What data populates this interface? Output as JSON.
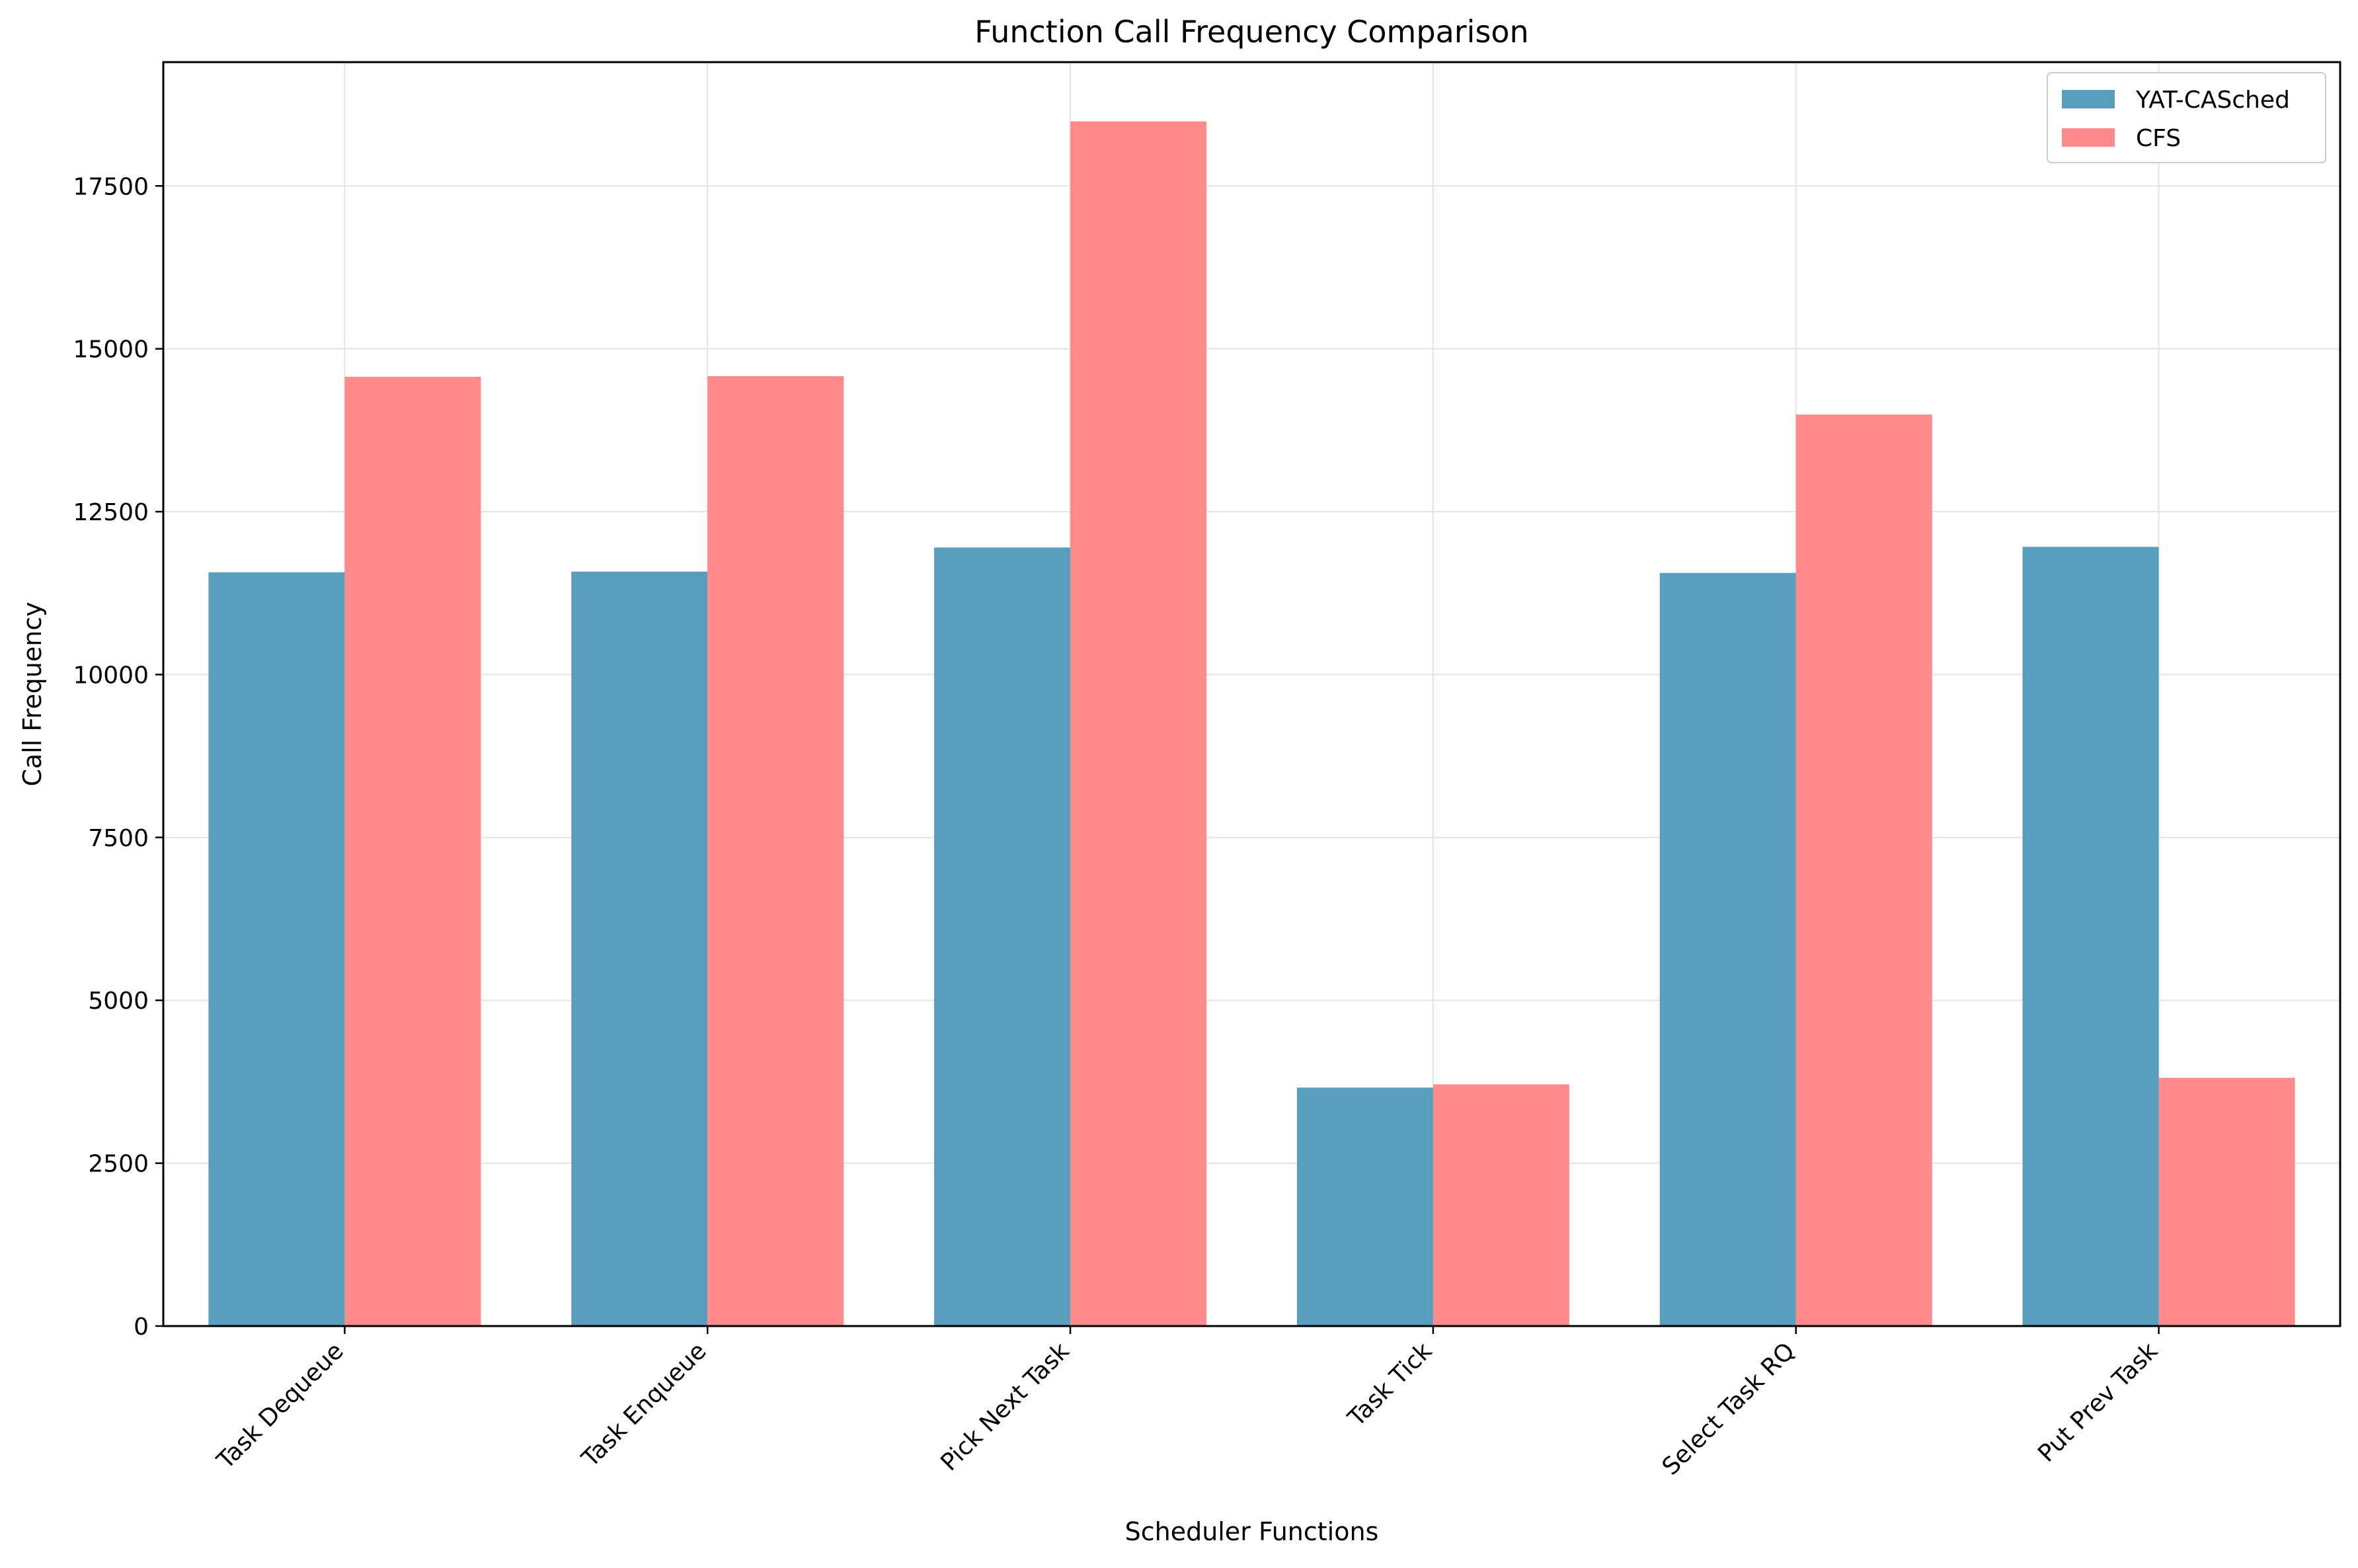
{
  "chart_data": {
    "type": "bar",
    "title": "Function Call Frequency Comparison",
    "xlabel": "Scheduler Functions",
    "ylabel": "Call Frequency",
    "categories": [
      "Task Dequeue",
      "Task Enqueue",
      "Pick Next Task",
      "Task Tick",
      "Select Task RQ",
      "Put Prev Task"
    ],
    "series": [
      {
        "name": "YAT-CASched",
        "color": "#5a9ebd",
        "values": [
          11570,
          11580,
          11950,
          3660,
          11560,
          11960
        ]
      },
      {
        "name": "CFS",
        "color": "#ff8a8a",
        "values": [
          14570,
          14580,
          18490,
          3710,
          13990,
          3810
        ]
      }
    ],
    "ylim": [
      0,
      19400
    ],
    "yticks": [
      0,
      2500,
      5000,
      7500,
      10000,
      12500,
      15000,
      17500
    ],
    "grid": true,
    "legend_position": "top-right"
  }
}
